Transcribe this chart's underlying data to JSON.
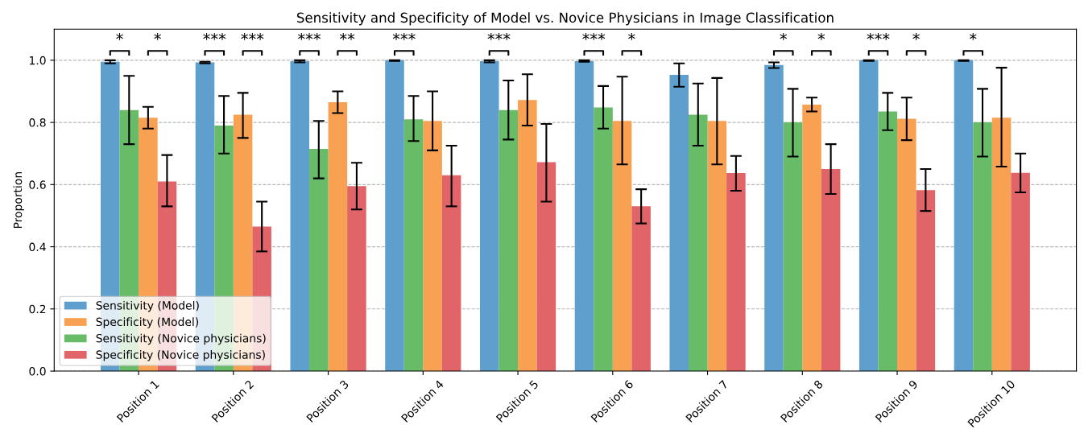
{
  "chart_data": {
    "type": "bar",
    "title": "Sensitivity and Specificity of Model vs. Novice Physicians in Image Classification",
    "ylabel": "Proportion",
    "categories": [
      "Position 1",
      "Position 2",
      "Position 3",
      "Position 4",
      "Position 5",
      "Position 6",
      "Position 7",
      "Position 8",
      "Position 9",
      "Position 10"
    ],
    "series": [
      {
        "name": "Sensitivity (Model)",
        "color": "#5f9fcd",
        "values": [
          0.995,
          0.993,
          0.997,
          1.0,
          0.997,
          0.997,
          0.953,
          0.985,
          1.0,
          1.0
        ],
        "errors": [
          [
            0.99,
            1.0
          ],
          [
            0.99,
            0.995
          ],
          [
            0.993,
            1.0
          ],
          [
            0.998,
            1.0
          ],
          [
            0.993,
            1.0
          ],
          [
            0.995,
            1.0
          ],
          [
            0.915,
            0.99
          ],
          [
            0.975,
            0.993
          ],
          [
            0.998,
            1.0
          ],
          [
            0.998,
            1.0
          ]
        ]
      },
      {
        "name": "Specificity (Model)",
        "color": "#f8a153",
        "values": [
          0.815,
          0.825,
          0.865,
          0.805,
          0.872,
          0.805,
          0.805,
          0.857,
          0.812,
          0.815
        ],
        "errors": [
          [
            0.78,
            0.85
          ],
          [
            0.75,
            0.895
          ],
          [
            0.83,
            0.9
          ],
          [
            0.71,
            0.9
          ],
          [
            0.79,
            0.955
          ],
          [
            0.665,
            0.947
          ],
          [
            0.665,
            0.943
          ],
          [
            0.835,
            0.88
          ],
          [
            0.743,
            0.88
          ],
          [
            0.658,
            0.976
          ]
        ]
      },
      {
        "name": "Sensitivity (Novice physicians)",
        "color": "#68bc68",
        "values": [
          0.84,
          0.79,
          0.715,
          0.81,
          0.84,
          0.848,
          0.825,
          0.8,
          0.835,
          0.8
        ],
        "errors": [
          [
            0.73,
            0.95
          ],
          [
            0.7,
            0.885
          ],
          [
            0.62,
            0.805
          ],
          [
            0.74,
            0.885
          ],
          [
            0.745,
            0.935
          ],
          [
            0.78,
            0.917
          ],
          [
            0.725,
            0.925
          ],
          [
            0.69,
            0.908
          ],
          [
            0.775,
            0.895
          ],
          [
            0.69,
            0.908
          ]
        ]
      },
      {
        "name": "Specificity (Novice physicians)",
        "color": "#e06468",
        "values": [
          0.61,
          0.465,
          0.595,
          0.63,
          0.672,
          0.53,
          0.637,
          0.65,
          0.582,
          0.638
        ],
        "errors": [
          [
            0.53,
            0.695
          ],
          [
            0.385,
            0.545
          ],
          [
            0.52,
            0.67
          ],
          [
            0.53,
            0.725
          ],
          [
            0.545,
            0.795
          ],
          [
            0.475,
            0.585
          ],
          [
            0.58,
            0.692
          ],
          [
            0.57,
            0.73
          ],
          [
            0.515,
            0.65
          ],
          [
            0.575,
            0.7
          ]
        ]
      }
    ],
    "ylim": [
      0,
      1.1
    ],
    "yticks": [
      {
        "value": 0,
        "label": "0.0"
      },
      0.2,
      0.4,
      0.6,
      0.8,
      {
        "value": 1,
        "label": "1.0"
      }
    ],
    "grid": "y",
    "legend": "bottom left",
    "annotations": [
      "*",
      "*",
      "***",
      "***",
      "***",
      "**",
      "***",
      "***",
      "***",
      "*",
      "*",
      "*",
      "***",
      "*",
      "*"
    ]
  }
}
